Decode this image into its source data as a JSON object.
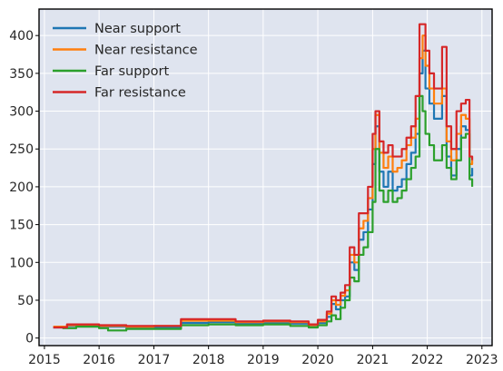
{
  "chart_data": {
    "type": "line",
    "title": "",
    "xlabel": "",
    "ylabel": "",
    "x_axis_type": "time",
    "xlim": [
      "2014-11-26",
      "2023-03-10"
    ],
    "ylim": [
      -10,
      435
    ],
    "grid": true,
    "legend_position": "top-left",
    "x_ticks": [
      "2015",
      "2016",
      "2017",
      "2018",
      "2019",
      "2020",
      "2021",
      "2022",
      "2023"
    ],
    "y_ticks": [
      0,
      50,
      100,
      150,
      200,
      250,
      300,
      350,
      400
    ],
    "series": [
      {
        "name": "Near support",
        "color": "#1f77b4",
        "points": [
          [
            "2015-03-01",
            14
          ],
          [
            "2015-06-01",
            16
          ],
          [
            "2016-01-01",
            15
          ],
          [
            "2016-07-01",
            14
          ],
          [
            "2017-01-01",
            14
          ],
          [
            "2017-07-01",
            20
          ],
          [
            "2018-01-01",
            21
          ],
          [
            "2018-07-01",
            19
          ],
          [
            "2019-01-01",
            20
          ],
          [
            "2019-07-01",
            19
          ],
          [
            "2019-11-01",
            16
          ],
          [
            "2020-01-01",
            20
          ],
          [
            "2020-03-01",
            28
          ],
          [
            "2020-04-01",
            45
          ],
          [
            "2020-05-01",
            38
          ],
          [
            "2020-06-01",
            50
          ],
          [
            "2020-07-01",
            55
          ],
          [
            "2020-08-01",
            100
          ],
          [
            "2020-09-01",
            90
          ],
          [
            "2020-10-01",
            130
          ],
          [
            "2020-11-01",
            140
          ],
          [
            "2020-12-01",
            170
          ],
          [
            "2021-01-01",
            230
          ],
          [
            "2021-01-20",
            280
          ],
          [
            "2021-02-15",
            220
          ],
          [
            "2021-03-15",
            200
          ],
          [
            "2021-04-15",
            220
          ],
          [
            "2021-05-15",
            195
          ],
          [
            "2021-06-15",
            200
          ],
          [
            "2021-07-15",
            210
          ],
          [
            "2021-08-15",
            230
          ],
          [
            "2021-09-15",
            245
          ],
          [
            "2021-10-15",
            270
          ],
          [
            "2021-11-10",
            350
          ],
          [
            "2021-12-01",
            380
          ],
          [
            "2021-12-20",
            330
          ],
          [
            "2022-01-15",
            310
          ],
          [
            "2022-02-15",
            290
          ],
          [
            "2022-03-15",
            290
          ],
          [
            "2022-04-10",
            320
          ],
          [
            "2022-05-10",
            240
          ],
          [
            "2022-06-10",
            215
          ],
          [
            "2022-07-15",
            250
          ],
          [
            "2022-08-15",
            280
          ],
          [
            "2022-09-15",
            275
          ],
          [
            "2022-10-10",
            215
          ],
          [
            "2022-10-28",
            225
          ]
        ]
      },
      {
        "name": "Near resistance",
        "color": "#ff7f0e",
        "points": [
          [
            "2015-03-01",
            15
          ],
          [
            "2015-06-01",
            17
          ],
          [
            "2016-01-01",
            16
          ],
          [
            "2016-07-01",
            15
          ],
          [
            "2017-01-01",
            16
          ],
          [
            "2017-07-01",
            23
          ],
          [
            "2018-01-01",
            23
          ],
          [
            "2018-07-01",
            21
          ],
          [
            "2019-01-01",
            22
          ],
          [
            "2019-07-01",
            21
          ],
          [
            "2019-11-01",
            17
          ],
          [
            "2020-01-01",
            22
          ],
          [
            "2020-03-01",
            32
          ],
          [
            "2020-04-01",
            50
          ],
          [
            "2020-05-01",
            44
          ],
          [
            "2020-06-01",
            56
          ],
          [
            "2020-07-01",
            63
          ],
          [
            "2020-08-01",
            110
          ],
          [
            "2020-09-01",
            100
          ],
          [
            "2020-10-01",
            145
          ],
          [
            "2020-11-01",
            155
          ],
          [
            "2020-12-01",
            185
          ],
          [
            "2021-01-01",
            250
          ],
          [
            "2021-01-20",
            295
          ],
          [
            "2021-02-15",
            245
          ],
          [
            "2021-03-15",
            225
          ],
          [
            "2021-04-15",
            240
          ],
          [
            "2021-05-15",
            220
          ],
          [
            "2021-06-15",
            225
          ],
          [
            "2021-07-15",
            235
          ],
          [
            "2021-08-15",
            255
          ],
          [
            "2021-09-15",
            265
          ],
          [
            "2021-10-15",
            290
          ],
          [
            "2021-11-10",
            370
          ],
          [
            "2021-12-01",
            400
          ],
          [
            "2021-12-20",
            360
          ],
          [
            "2022-01-15",
            330
          ],
          [
            "2022-02-15",
            310
          ],
          [
            "2022-03-15",
            310
          ],
          [
            "2022-04-10",
            330
          ],
          [
            "2022-05-10",
            260
          ],
          [
            "2022-06-10",
            235
          ],
          [
            "2022-07-15",
            270
          ],
          [
            "2022-08-15",
            295
          ],
          [
            "2022-09-15",
            290
          ],
          [
            "2022-10-10",
            230
          ],
          [
            "2022-10-28",
            235
          ]
        ]
      },
      {
        "name": "Far support",
        "color": "#2ca02c",
        "points": [
          [
            "2015-05-01",
            13
          ],
          [
            "2015-08-01",
            15
          ],
          [
            "2016-01-01",
            13
          ],
          [
            "2016-03-01",
            10
          ],
          [
            "2016-07-01",
            12
          ],
          [
            "2017-01-01",
            12
          ],
          [
            "2017-07-01",
            17
          ],
          [
            "2018-01-01",
            18
          ],
          [
            "2018-07-01",
            17
          ],
          [
            "2019-01-01",
            18
          ],
          [
            "2019-07-01",
            16
          ],
          [
            "2019-11-01",
            14
          ],
          [
            "2020-01-01",
            17
          ],
          [
            "2020-03-01",
            22
          ],
          [
            "2020-04-01",
            30
          ],
          [
            "2020-05-01",
            25
          ],
          [
            "2020-06-01",
            40
          ],
          [
            "2020-07-01",
            50
          ],
          [
            "2020-08-01",
            80
          ],
          [
            "2020-09-01",
            75
          ],
          [
            "2020-10-01",
            110
          ],
          [
            "2020-11-01",
            120
          ],
          [
            "2020-12-01",
            140
          ],
          [
            "2021-01-01",
            180
          ],
          [
            "2021-01-20",
            250
          ],
          [
            "2021-02-15",
            195
          ],
          [
            "2021-03-15",
            180
          ],
          [
            "2021-04-15",
            195
          ],
          [
            "2021-05-15",
            180
          ],
          [
            "2021-06-15",
            185
          ],
          [
            "2021-07-15",
            195
          ],
          [
            "2021-08-15",
            210
          ],
          [
            "2021-09-15",
            225
          ],
          [
            "2021-10-15",
            240
          ],
          [
            "2021-11-10",
            320
          ],
          [
            "2021-12-01",
            300
          ],
          [
            "2021-12-20",
            270
          ],
          [
            "2022-01-15",
            255
          ],
          [
            "2022-02-15",
            235
          ],
          [
            "2022-03-15",
            235
          ],
          [
            "2022-04-10",
            255
          ],
          [
            "2022-05-10",
            225
          ],
          [
            "2022-06-10",
            210
          ],
          [
            "2022-07-15",
            235
          ],
          [
            "2022-08-15",
            265
          ],
          [
            "2022-09-15",
            270
          ],
          [
            "2022-10-10",
            210
          ],
          [
            "2022-10-28",
            200
          ]
        ]
      },
      {
        "name": "Far resistance",
        "color": "#d62728",
        "points": [
          [
            "2015-03-01",
            14
          ],
          [
            "2015-06-01",
            18
          ],
          [
            "2016-01-01",
            17
          ],
          [
            "2016-07-01",
            16
          ],
          [
            "2017-01-01",
            16
          ],
          [
            "2017-07-01",
            25
          ],
          [
            "2018-01-01",
            25
          ],
          [
            "2018-07-01",
            22
          ],
          [
            "2019-01-01",
            23
          ],
          [
            "2019-07-01",
            22
          ],
          [
            "2019-11-01",
            18
          ],
          [
            "2020-01-01",
            24
          ],
          [
            "2020-03-01",
            35
          ],
          [
            "2020-04-01",
            55
          ],
          [
            "2020-05-01",
            50
          ],
          [
            "2020-06-01",
            60
          ],
          [
            "2020-07-01",
            70
          ],
          [
            "2020-08-01",
            120
          ],
          [
            "2020-09-01",
            110
          ],
          [
            "2020-10-01",
            165
          ],
          [
            "2020-11-01",
            165
          ],
          [
            "2020-12-01",
            200
          ],
          [
            "2021-01-01",
            270
          ],
          [
            "2021-01-20",
            300
          ],
          [
            "2021-02-15",
            260
          ],
          [
            "2021-03-15",
            245
          ],
          [
            "2021-04-15",
            255
          ],
          [
            "2021-05-15",
            240
          ],
          [
            "2021-06-15",
            240
          ],
          [
            "2021-07-15",
            250
          ],
          [
            "2021-08-15",
            265
          ],
          [
            "2021-09-15",
            280
          ],
          [
            "2021-10-15",
            320
          ],
          [
            "2021-11-10",
            415
          ],
          [
            "2021-12-01",
            415
          ],
          [
            "2021-12-20",
            380
          ],
          [
            "2022-01-15",
            350
          ],
          [
            "2022-02-15",
            330
          ],
          [
            "2022-03-15",
            330
          ],
          [
            "2022-04-10",
            385
          ],
          [
            "2022-05-10",
            280
          ],
          [
            "2022-06-10",
            250
          ],
          [
            "2022-07-15",
            300
          ],
          [
            "2022-08-15",
            310
          ],
          [
            "2022-09-15",
            315
          ],
          [
            "2022-10-10",
            240
          ],
          [
            "2022-10-28",
            235
          ]
        ]
      }
    ]
  }
}
